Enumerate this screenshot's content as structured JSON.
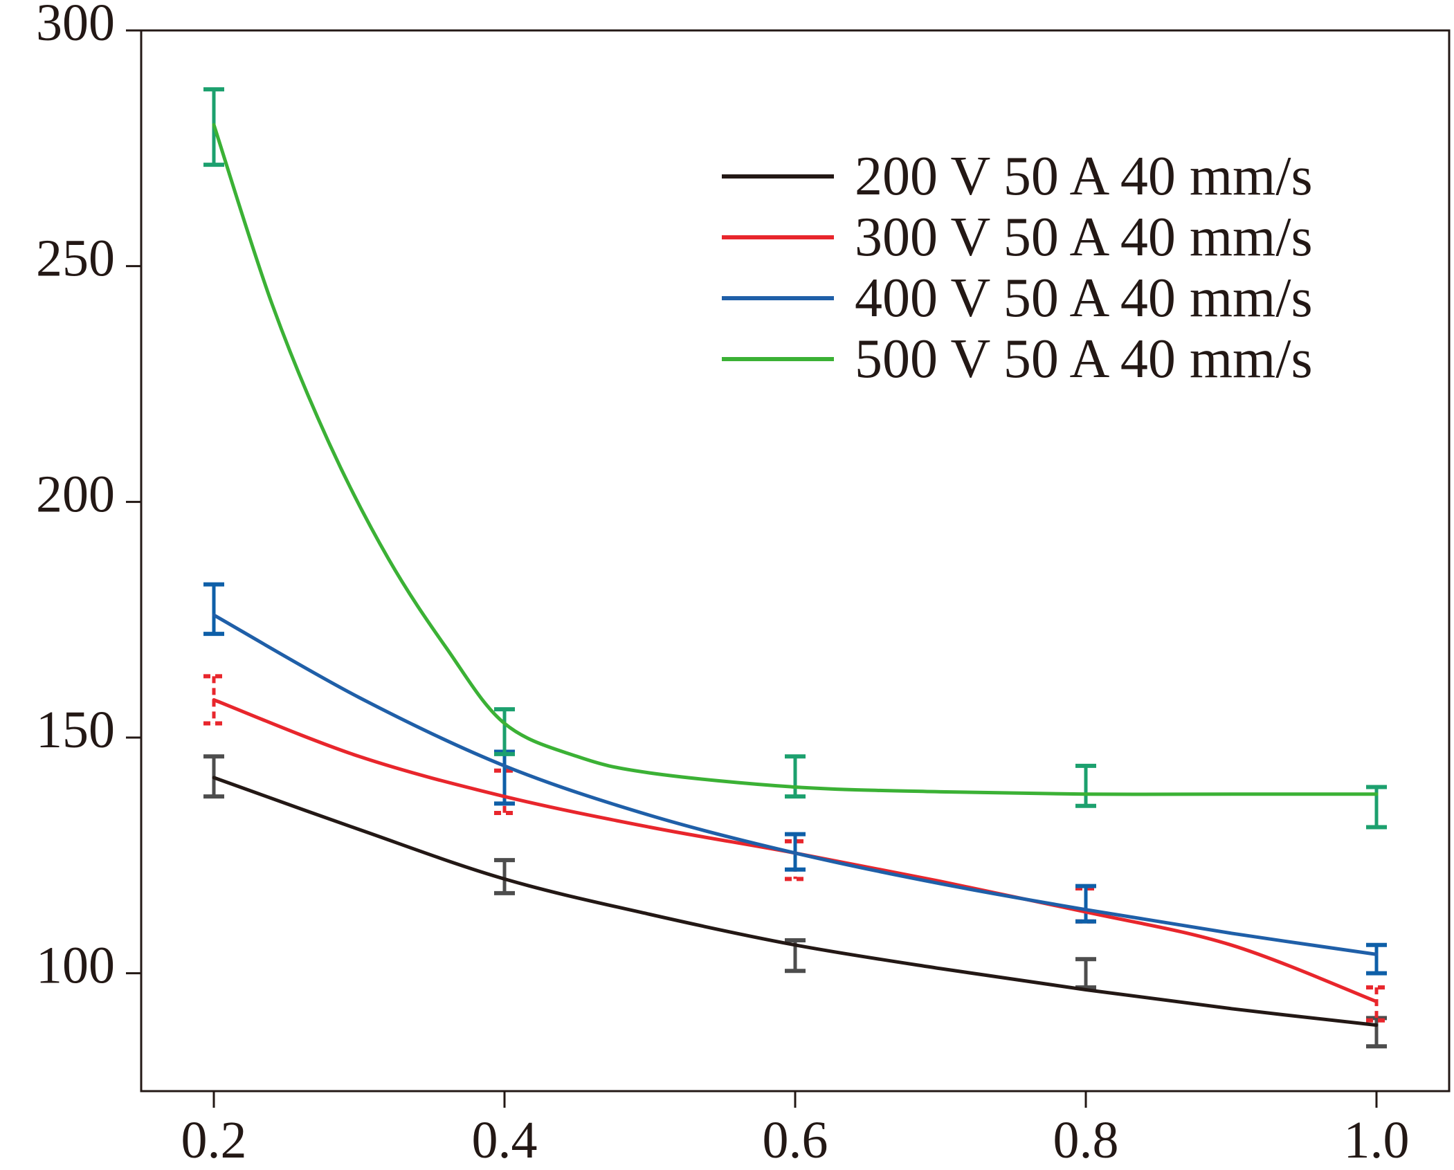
{
  "chart_data": {
    "type": "line",
    "title": "",
    "xlabel": "",
    "ylabel": "",
    "x": [
      0.2,
      0.4,
      0.6,
      0.8,
      1.0
    ],
    "x_ticks": [
      "0.2",
      "0.4",
      "0.6",
      "0.8",
      "1.0"
    ],
    "y_ticks": [
      "100",
      "150",
      "200",
      "250",
      "300"
    ],
    "xlim": [
      0.15,
      1.05
    ],
    "ylim": [
      75,
      300
    ],
    "grid": false,
    "legend_position": "top-right",
    "series": [
      {
        "name": "200 V 50 A 40 mm/s",
        "color": "#231815",
        "errbar_color": "#4d4d4d",
        "errbar_style": "solid",
        "curve": [
          [
            0.2,
            141.5
          ],
          [
            0.3,
            130.5
          ],
          [
            0.4,
            120
          ],
          [
            0.5,
            112.5
          ],
          [
            0.6,
            106
          ],
          [
            0.7,
            101
          ],
          [
            0.8,
            96.5
          ],
          [
            0.9,
            92.5
          ],
          [
            1.0,
            89
          ]
        ],
        "points": [
          {
            "x": 0.2,
            "low": 137.5,
            "high": 146
          },
          {
            "x": 0.4,
            "low": 117,
            "high": 124
          },
          {
            "x": 0.6,
            "low": 100.5,
            "high": 107
          },
          {
            "x": 0.8,
            "low": 97,
            "high": 103
          },
          {
            "x": 1.0,
            "low": 84.5,
            "high": 90.5
          }
        ]
      },
      {
        "name": "300 V 50 A 40 mm/s",
        "color": "#e8262c",
        "errbar_color": "#e8262c",
        "errbar_style": "dashed",
        "curve": [
          [
            0.2,
            158
          ],
          [
            0.3,
            146
          ],
          [
            0.4,
            137.5
          ],
          [
            0.5,
            131
          ],
          [
            0.6,
            125.5
          ],
          [
            0.7,
            119.5
          ],
          [
            0.8,
            113
          ],
          [
            0.9,
            106
          ],
          [
            1.0,
            94
          ]
        ],
        "points": [
          {
            "x": 0.2,
            "low": 153,
            "high": 163
          },
          {
            "x": 0.4,
            "low": 134,
            "high": 143
          },
          {
            "x": 0.6,
            "low": 120,
            "high": 128
          },
          {
            "x": 0.8,
            "low": 111,
            "high": 118
          },
          {
            "x": 1.0,
            "low": 90,
            "high": 97
          }
        ]
      },
      {
        "name": "400 V 50 A 40 mm/s",
        "color": "#1f5fa8",
        "errbar_color": "#0e5fa8",
        "errbar_style": "solid",
        "curve": [
          [
            0.2,
            176
          ],
          [
            0.3,
            158.5
          ],
          [
            0.4,
            144
          ],
          [
            0.5,
            133.5
          ],
          [
            0.6,
            125.5
          ],
          [
            0.7,
            119
          ],
          [
            0.8,
            113.5
          ],
          [
            0.9,
            108.5
          ],
          [
            1.0,
            104
          ]
        ],
        "points": [
          {
            "x": 0.2,
            "low": 172,
            "high": 182.5
          },
          {
            "x": 0.4,
            "low": 136,
            "high": 147
          },
          {
            "x": 0.6,
            "low": 122,
            "high": 129.5
          },
          {
            "x": 0.8,
            "low": 111,
            "high": 118.5
          },
          {
            "x": 1.0,
            "low": 100,
            "high": 106
          }
        ]
      },
      {
        "name": "500 V 50 A 40 mm/s",
        "color": "#3bb135",
        "errbar_color": "#1ca06e",
        "errbar_style": "solid",
        "curve": [
          [
            0.2,
            280
          ],
          [
            0.24,
            242
          ],
          [
            0.28,
            212
          ],
          [
            0.32,
            188
          ],
          [
            0.36,
            169
          ],
          [
            0.4,
            153
          ],
          [
            0.45,
            146
          ],
          [
            0.5,
            142.5
          ],
          [
            0.6,
            139.5
          ],
          [
            0.7,
            138.5
          ],
          [
            0.8,
            138
          ],
          [
            0.9,
            138
          ],
          [
            1.0,
            138
          ]
        ],
        "points": [
          {
            "x": 0.2,
            "low": 271.5,
            "high": 287.5
          },
          {
            "x": 0.4,
            "low": 146.5,
            "high": 156
          },
          {
            "x": 0.6,
            "low": 137.5,
            "high": 146
          },
          {
            "x": 0.8,
            "low": 135.5,
            "high": 144
          },
          {
            "x": 1.0,
            "low": 131,
            "high": 139.5
          }
        ]
      }
    ]
  }
}
